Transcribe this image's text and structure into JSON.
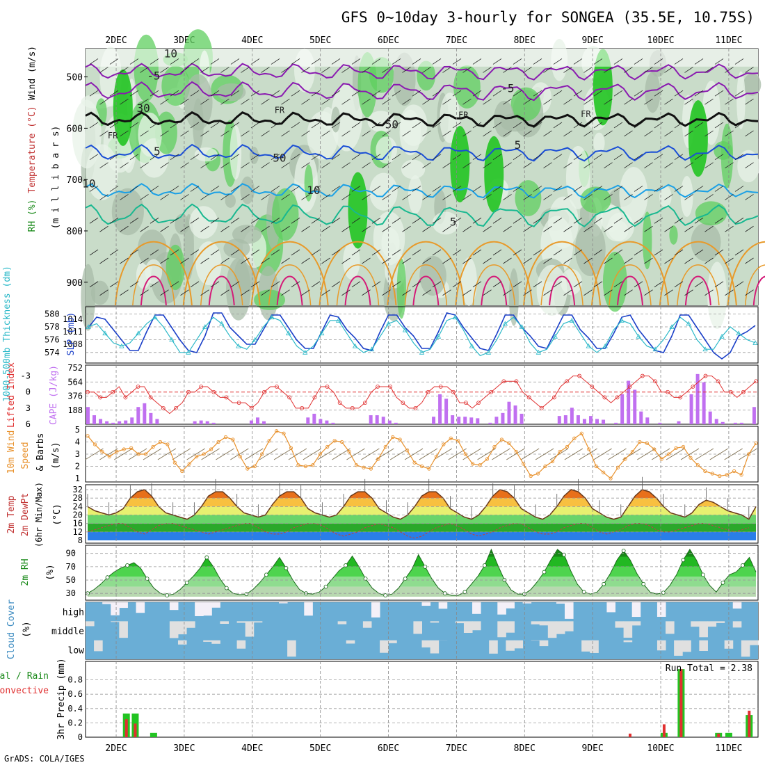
{
  "title": "GFS 0~10day 3-hourly for SONGEA (35.5E, 10.75S)",
  "credit": "GrADS: COLA/IGES",
  "date_labels": [
    "2DEC",
    "3DEC",
    "4DEC",
    "5DEC",
    "6DEC",
    "7DEC",
    "8DEC",
    "9DEC",
    "10DEC",
    "11DEC"
  ],
  "colors": {
    "rh_green": "#22c422",
    "rh_light": "#e8f3e8",
    "rh_mid": "#c9dcc9",
    "rh_dark": "#a8bca8",
    "temp_purple": "#8a1ab0",
    "temp_blue": "#1a4ed6",
    "temp_cyan": "#1aa0e6",
    "temp_teal": "#18b890",
    "temp_orange": "#e89a2a",
    "temp_magenta": "#d41a78",
    "slp": "#1a3fc8",
    "thickness": "#2ab8c8",
    "li": "#e03030",
    "cape": "#c070f0",
    "wind": "#e8902a",
    "cloud": "#6aaed6",
    "cloud_bg": "#f4f0f8",
    "precip_total": "#22c422",
    "precip_conv": "#e03030"
  },
  "chart_data": [
    {
      "type": "heatmap",
      "id": "upper_air",
      "ylabels": [
        "Wind (m/s)",
        "Temperature (°C)",
        "RH (%)",
        "(m i l l i b a r s)"
      ],
      "ylim": [
        945,
        445
      ],
      "yticks": [
        500,
        600,
        700,
        800,
        900
      ],
      "contour_labels": [
        {
          "text": "-5",
          "day": 1.55,
          "p": 505
        },
        {
          "text": "-5",
          "day": 6.75,
          "p": 530
        },
        {
          "text": "FR",
          "day": 0.95,
          "p": 620
        },
        {
          "text": "FR",
          "day": 3.4,
          "p": 570
        },
        {
          "text": "FR",
          "day": 6.1,
          "p": 580
        },
        {
          "text": "FR",
          "day": 7.9,
          "p": 578
        },
        {
          "text": "5",
          "day": 1.6,
          "p": 652
        },
        {
          "text": "5",
          "day": 6.9,
          "p": 640
        },
        {
          "text": "10",
          "day": 0.6,
          "p": 715
        },
        {
          "text": "10",
          "day": 3.9,
          "p": 728
        },
        {
          "text": "5",
          "day": 5.95,
          "p": 790
        },
        {
          "text": "10",
          "day": 1.8,
          "p": 462
        },
        {
          "text": "30",
          "day": 1.4,
          "p": 568
        },
        {
          "text": "50",
          "day": 5.05,
          "p": 600
        },
        {
          "text": "50",
          "day": 3.4,
          "p": 665
        }
      ]
    },
    {
      "type": "line",
      "id": "slp_thickness",
      "ylabels": [
        "1000-500mb Thickness (dm)",
        "SLP (mb)"
      ],
      "left_ticks": [
        574,
        576,
        578,
        580
      ],
      "right_ticks": [
        1008,
        1011,
        1014
      ],
      "series": [
        {
          "name": "SLP (mb)",
          "values": [
            1012,
            1014.5,
            1014,
            1011.5,
            1009,
            1006.5,
            1006.5,
            1011,
            1015,
            1015,
            1012,
            1009,
            1006.5,
            1006,
            1010,
            1015.5,
            1015.5,
            1012,
            1010,
            1008,
            1008,
            1011.5,
            1015,
            1015,
            1012,
            1009,
            1007,
            1007,
            1011,
            1015,
            1014.5,
            1011.5,
            1009.5,
            1007,
            1006.5,
            1011,
            1015,
            1015,
            1012,
            1010,
            1007,
            1007,
            1011,
            1015.5,
            1015,
            1012,
            1009.5,
            1007,
            1006.5,
            1010.5,
            1015,
            1015,
            1012,
            1010,
            1007.5,
            1007,
            1011,
            1015,
            1015,
            1011.5,
            1009.5,
            1007,
            1007,
            1010.5,
            1014.5,
            1015,
            1011.5,
            1009,
            1006.5,
            1006,
            1010,
            1015,
            1015,
            1012,
            1009,
            1006,
            1004.5,
            1006,
            1010,
            1011,
            1012.5
          ]
        },
        {
          "name": "1000-500mb Thickness (dm)",
          "values": [
            578,
            578.5,
            577,
            575.5,
            575,
            575.5,
            577,
            578.5,
            579.5,
            578,
            576,
            574,
            574,
            576,
            578,
            579.5,
            578.5,
            576.5,
            575,
            574.5,
            576,
            578,
            579.5,
            579,
            577,
            575,
            574,
            575,
            577,
            579,
            579,
            577,
            575,
            574,
            574.5,
            576.5,
            578.5,
            579,
            577.5,
            575.5,
            574,
            574.5,
            576.5,
            579,
            579.5,
            577.5,
            575,
            573.5,
            574,
            576,
            578.5,
            579.5,
            578,
            575.5,
            574,
            574.5,
            576.5,
            578.5,
            579,
            577,
            575,
            574,
            575,
            577.5,
            579,
            578.5,
            576.5,
            575,
            574.5,
            576,
            578,
            579.5,
            578.5,
            576,
            574.5,
            574.5,
            576.5,
            578,
            577,
            576,
            575.5
          ]
        }
      ]
    },
    {
      "type": "bar",
      "id": "cape_li",
      "ylabels": [
        "Lifted Index",
        "CAPE (J/kg)"
      ],
      "left_ticks": [
        "-3",
        "0",
        "3",
        "6"
      ],
      "right_ticks": [
        "188",
        "376",
        "564",
        "752"
      ],
      "series": [
        {
          "name": "CAPE (J/kg)",
          "values": [
            230,
            120,
            70,
            40,
            20,
            40,
            50,
            90,
            230,
            280,
            150,
            70,
            0,
            0,
            0,
            0,
            0,
            40,
            50,
            40,
            20,
            0,
            0,
            0,
            0,
            0,
            50,
            90,
            40,
            0,
            0,
            0,
            0,
            0,
            0,
            90,
            140,
            70,
            50,
            20,
            0,
            0,
            0,
            0,
            0,
            120,
            120,
            100,
            50,
            20,
            0,
            0,
            0,
            0,
            0,
            100,
            400,
            340,
            120,
            100,
            100,
            90,
            80,
            0,
            20,
            100,
            150,
            300,
            250,
            140,
            0,
            0,
            0,
            0,
            0,
            110,
            120,
            220,
            120,
            70,
            110,
            70,
            60,
            0,
            20,
            400,
            580,
            460,
            170,
            90,
            0,
            20,
            0,
            0,
            40,
            0,
            400,
            670,
            560,
            170,
            70,
            30,
            0,
            20,
            20,
            0,
            230
          ]
        },
        {
          "name": "Lifted Index",
          "values": [
            0,
            0,
            1,
            1,
            0,
            -1,
            1,
            0,
            -1,
            -1,
            1,
            2,
            3,
            4,
            3,
            2,
            0,
            0,
            -1,
            -1,
            0,
            1,
            1,
            2,
            2,
            2,
            3,
            2,
            0,
            -1,
            -1,
            0,
            1,
            3,
            3,
            3,
            1,
            -1,
            -1,
            0,
            2,
            3,
            3,
            3,
            2,
            0,
            -1,
            -1,
            -1,
            1,
            2,
            3,
            3,
            2,
            0,
            -1,
            -1,
            -1,
            0,
            2,
            2,
            3,
            2,
            1,
            0,
            -1,
            -2,
            -2,
            -2,
            0,
            1,
            2,
            3,
            2,
            1,
            -1,
            -2,
            -3,
            -3,
            -2,
            -1,
            0,
            1,
            2,
            1,
            0,
            -1,
            -2,
            -3,
            -3,
            -2,
            0,
            0,
            1,
            1,
            0,
            -1,
            -2,
            -3,
            -3,
            -2,
            0,
            0,
            1,
            0,
            -1,
            -2
          ]
        }
      ]
    },
    {
      "type": "line",
      "id": "wind10m",
      "ylabels": [
        "10m Wind Speed & Barbs",
        "(m/s)"
      ],
      "yticks": [
        "1",
        "2",
        "3",
        "4",
        "5"
      ],
      "series": [
        {
          "name": "10m wind speed (m/s)",
          "values": [
            4.5,
            3.8,
            3.2,
            2.8,
            3.2,
            3.4,
            3.5,
            3.0,
            3.0,
            3.6,
            4.0,
            3.8,
            2.3,
            1.6,
            2.2,
            2.8,
            3.0,
            3.4,
            4.0,
            4.4,
            4.2,
            2.8,
            1.8,
            2.0,
            3.0,
            4.1,
            4.9,
            4.7,
            3.5,
            2.1,
            2.0,
            2.1,
            3.0,
            3.6,
            4.1,
            4.0,
            3.2,
            2.1,
            1.9,
            1.8,
            2.6,
            3.6,
            4.4,
            4.2,
            3.3,
            2.3,
            2.0,
            1.8,
            2.8,
            3.8,
            4.3,
            4.1,
            3.0,
            2.2,
            2.1,
            2.6,
            3.6,
            4.2,
            3.9,
            3.2,
            2.2,
            1.2,
            1.4,
            2.0,
            2.4,
            3.2,
            3.6,
            4.3,
            4.7,
            3.4,
            2.0,
            1.5,
            1.0,
            1.9,
            2.6,
            3.2,
            4.0,
            3.9,
            3.4,
            2.6,
            3.0,
            3.5,
            3.6,
            2.7,
            2.1,
            1.6,
            1.4,
            1.2,
            1.3,
            1.6,
            1.3,
            3.0,
            3.9
          ]
        }
      ]
    },
    {
      "type": "area",
      "id": "temp2m",
      "ylabels": [
        "2m Temp",
        "2m DewPt",
        "(6hr Min/Max)",
        "(°C)"
      ],
      "yticks": [
        "8",
        "12",
        "16",
        "20",
        "24",
        "28",
        "32"
      ],
      "series": [
        {
          "name": "2m Temp (°C)",
          "values": [
            24,
            22,
            21,
            20,
            21,
            23,
            28,
            31,
            32,
            29,
            24,
            21,
            20,
            19,
            18,
            20,
            24,
            29,
            31,
            31,
            28,
            24,
            21,
            20,
            19,
            20,
            25,
            29,
            31,
            31,
            28,
            23,
            21,
            20,
            19,
            20,
            24,
            29,
            31,
            31,
            28,
            23,
            21,
            19,
            18,
            20,
            24,
            29,
            31,
            31,
            28,
            23,
            21,
            19,
            18,
            20,
            24,
            29,
            32,
            31,
            28,
            23,
            21,
            19,
            18,
            20,
            24,
            29,
            32,
            31,
            28,
            23,
            21,
            19,
            18,
            19,
            24,
            29,
            32,
            31,
            28,
            24,
            21,
            20,
            19,
            21,
            25,
            27,
            26,
            24,
            22,
            21,
            20,
            18,
            24
          ]
        },
        {
          "name": "2m DewPt (°C)",
          "values": [
            12,
            13,
            14,
            15,
            16,
            16,
            14,
            12,
            11,
            13,
            15,
            16,
            16,
            15,
            14,
            13,
            12,
            11,
            12,
            13,
            14,
            15,
            16,
            16,
            14,
            12,
            11,
            11,
            12,
            14,
            15,
            16,
            16,
            15,
            13,
            11,
            10,
            11,
            12,
            14,
            15,
            16,
            15,
            14,
            12,
            10,
            9,
            10,
            12,
            14,
            15,
            16,
            15,
            13,
            11,
            10,
            11,
            12,
            14,
            15,
            16,
            16,
            14,
            12,
            11,
            11,
            12,
            14,
            15,
            16,
            16,
            14,
            12,
            11,
            12,
            13,
            15,
            16,
            16,
            15,
            13,
            12,
            12,
            13,
            14,
            15,
            16,
            16,
            15,
            14,
            13,
            12,
            13,
            14
          ]
        }
      ]
    },
    {
      "type": "area",
      "id": "rh2m",
      "ylabels": [
        "2m RH",
        "(%)"
      ],
      "yticks": [
        "30",
        "50",
        "70",
        "90"
      ],
      "series": [
        {
          "name": "2m RH (%)",
          "values": [
            30,
            36,
            44,
            54,
            62,
            68,
            72,
            76,
            68,
            52,
            38,
            30,
            27,
            29,
            36,
            46,
            56,
            68,
            84,
            70,
            52,
            38,
            30,
            28,
            29,
            36,
            46,
            58,
            70,
            84,
            68,
            50,
            36,
            30,
            29,
            32,
            40,
            52,
            64,
            72,
            86,
            70,
            52,
            38,
            30,
            27,
            29,
            38,
            52,
            66,
            88,
            70,
            52,
            38,
            30,
            27,
            27,
            32,
            44,
            56,
            72,
            96,
            72,
            50,
            35,
            29,
            29,
            36,
            48,
            62,
            80,
            96,
            88,
            64,
            44,
            32,
            29,
            32,
            44,
            60,
            80,
            94,
            80,
            60,
            44,
            32,
            29,
            31,
            42,
            58,
            80,
            96,
            80,
            58,
            42,
            32,
            46,
            58,
            62,
            72,
            84,
            62
          ]
        }
      ]
    },
    {
      "type": "heatmap",
      "id": "cloud",
      "ylabels": [
        "Cloud Cover",
        "(%)"
      ],
      "rows": [
        "high",
        "middle",
        "low"
      ]
    },
    {
      "type": "bar",
      "id": "precip",
      "ylabels": [
        "Total / Rain",
        "Convective",
        "3hr Precip (mm)"
      ],
      "yticks": [
        "0",
        "0.2",
        "0.4",
        "0.6",
        "0.8"
      ],
      "run_total": "Run Total = 2.38",
      "series": [
        {
          "name": "Total",
          "points": [
            [
              0.15,
              0.33
            ],
            [
              0.28,
              0.33
            ],
            [
              0.55,
              0.06
            ],
            [
              8.05,
              0.06
            ],
            [
              8.3,
              0.95
            ],
            [
              8.85,
              0.06
            ],
            [
              9.0,
              0.06
            ],
            [
              9.3,
              0.31
            ]
          ]
        },
        {
          "name": "Convective",
          "points": [
            [
              0.15,
              0.25
            ],
            [
              0.28,
              0.19
            ],
            [
              7.55,
              0.05
            ],
            [
              8.05,
              0.18
            ],
            [
              8.3,
              0.95
            ],
            [
              8.85,
              0.05
            ],
            [
              9.3,
              0.37
            ]
          ]
        }
      ]
    }
  ]
}
